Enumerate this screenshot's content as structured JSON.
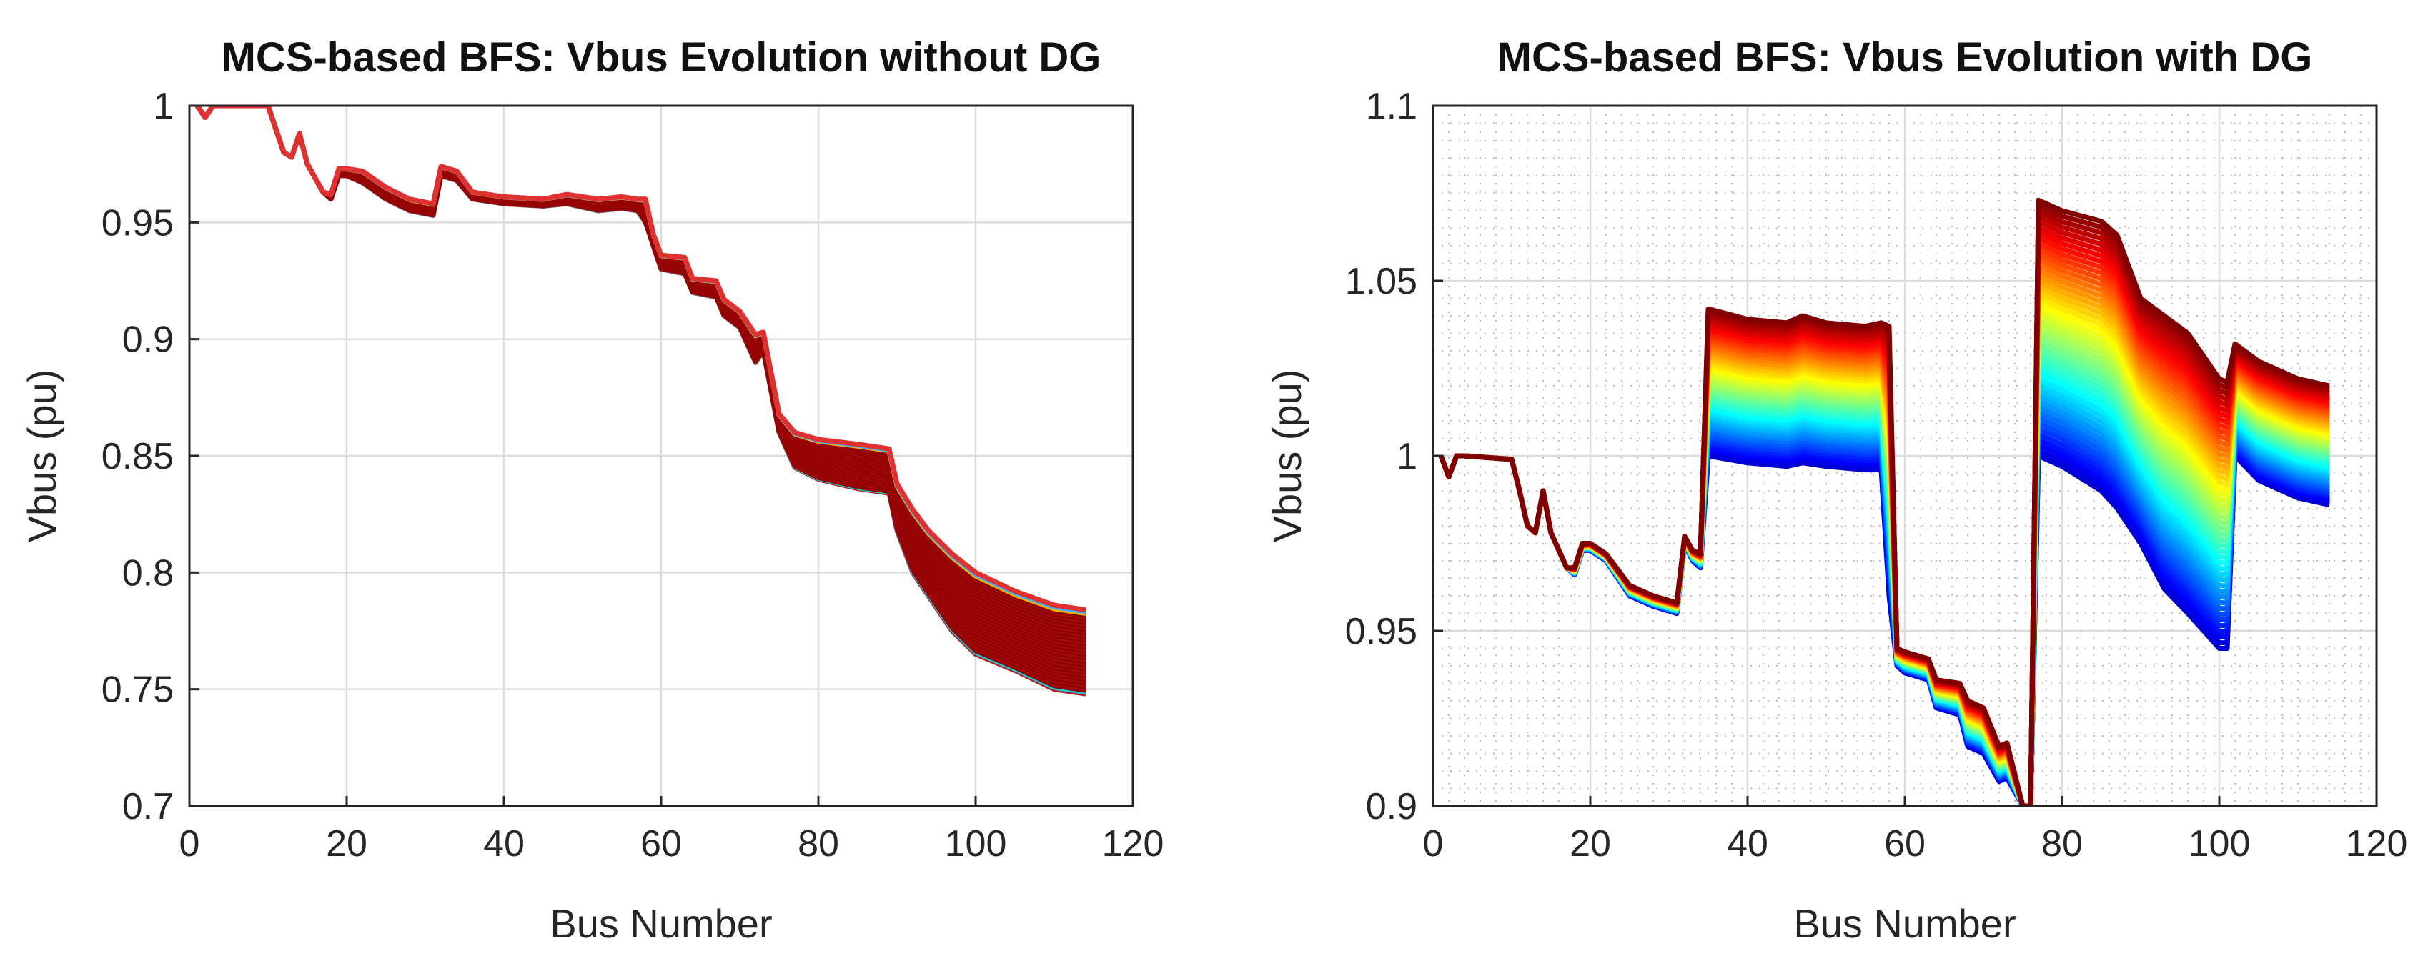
{
  "charts": [
    {
      "type": "line",
      "title": "MCS-based BFS: Vbus Evolution without DG",
      "xlabel": "Bus Number",
      "ylabel": "Vbus (pu)",
      "xlim": [
        0,
        120
      ],
      "ylim": [
        0.7,
        1.0
      ],
      "xticks": [
        "0",
        "20",
        "40",
        "60",
        "80",
        "100",
        "120"
      ],
      "yticks": [
        "0.7",
        "0.75",
        "0.8",
        "0.85",
        "0.9",
        "0.95",
        "1"
      ],
      "grid": "major",
      "band": {
        "x": [
          1,
          2,
          3,
          4,
          10,
          11,
          12,
          13,
          14,
          15,
          17,
          18,
          19,
          20,
          22,
          25,
          28,
          31,
          32,
          34,
          36,
          40,
          45,
          48,
          52,
          55,
          57,
          58,
          59,
          60,
          63,
          64,
          67,
          68,
          70,
          72,
          73,
          75,
          77,
          80,
          85,
          89,
          90,
          92,
          94,
          97,
          100,
          105,
          110,
          114
        ],
        "low": [
          1.0,
          0.995,
          1.0,
          1.0,
          1.0,
          0.99,
          0.98,
          0.978,
          0.988,
          0.975,
          0.963,
          0.96,
          0.97,
          0.97,
          0.967,
          0.96,
          0.955,
          0.953,
          0.97,
          0.968,
          0.96,
          0.958,
          0.957,
          0.958,
          0.955,
          0.956,
          0.955,
          0.95,
          0.94,
          0.93,
          0.928,
          0.92,
          0.918,
          0.91,
          0.905,
          0.89,
          0.895,
          0.86,
          0.845,
          0.84,
          0.836,
          0.834,
          0.818,
          0.8,
          0.79,
          0.775,
          0.765,
          0.758,
          0.75,
          0.748
        ],
        "high": [
          1.0,
          0.995,
          1.0,
          1.0,
          1.0,
          0.99,
          0.98,
          0.978,
          0.988,
          0.975,
          0.963,
          0.962,
          0.973,
          0.973,
          0.972,
          0.965,
          0.96,
          0.958,
          0.974,
          0.972,
          0.963,
          0.961,
          0.96,
          0.962,
          0.96,
          0.961,
          0.96,
          0.96,
          0.945,
          0.936,
          0.935,
          0.926,
          0.925,
          0.917,
          0.912,
          0.902,
          0.903,
          0.868,
          0.86,
          0.857,
          0.855,
          0.853,
          0.838,
          0.827,
          0.818,
          0.808,
          0.8,
          0.792,
          0.786,
          0.784
        ]
      }
    },
    {
      "type": "line",
      "title": "MCS-based BFS: Vbus Evolution with DG",
      "xlabel": "Bus Number",
      "ylabel": "Vbus (pu)",
      "xlim": [
        0,
        120
      ],
      "ylim": [
        0.9,
        1.1
      ],
      "xticks": [
        "0",
        "20",
        "40",
        "60",
        "80",
        "100",
        "120"
      ],
      "yticks": [
        "0.9",
        "0.95",
        "1",
        "1.05",
        "1.1"
      ],
      "grid": "major+minor",
      "band": {
        "x": [
          1,
          2,
          3,
          4,
          10,
          11,
          12,
          13,
          14,
          15,
          17,
          18,
          19,
          20,
          22,
          25,
          28,
          31,
          32,
          33,
          34,
          35,
          40,
          45,
          47,
          50,
          55,
          57,
          58,
          59,
          60,
          63,
          64,
          67,
          68,
          70,
          72,
          73,
          75,
          76,
          77,
          80,
          85,
          87,
          90,
          93,
          96,
          100,
          101,
          102,
          105,
          110,
          114
        ],
        "low": [
          1.0,
          0.994,
          1.0,
          1.0,
          0.999,
          0.99,
          0.98,
          0.978,
          0.99,
          0.978,
          0.968,
          0.966,
          0.973,
          0.973,
          0.97,
          0.96,
          0.957,
          0.955,
          0.975,
          0.97,
          0.968,
          1.0,
          0.998,
          0.997,
          0.998,
          0.997,
          0.996,
          0.996,
          0.96,
          0.94,
          0.938,
          0.936,
          0.928,
          0.926,
          0.917,
          0.915,
          0.907,
          0.908,
          0.9,
          0.9,
          1.0,
          0.997,
          0.99,
          0.985,
          0.975,
          0.962,
          0.955,
          0.945,
          0.945,
          1.0,
          0.993,
          0.988,
          0.986
        ],
        "high": [
          1.0,
          0.994,
          1.0,
          1.0,
          0.999,
          0.99,
          0.98,
          0.978,
          0.99,
          0.978,
          0.968,
          0.968,
          0.975,
          0.975,
          0.972,
          0.963,
          0.96,
          0.958,
          0.977,
          0.973,
          0.972,
          1.042,
          1.039,
          1.038,
          1.04,
          1.038,
          1.037,
          1.038,
          1.037,
          0.945,
          0.944,
          0.942,
          0.936,
          0.935,
          0.93,
          0.928,
          0.917,
          0.918,
          0.9,
          0.9,
          1.073,
          1.07,
          1.067,
          1.063,
          1.045,
          1.04,
          1.035,
          1.022,
          1.021,
          1.032,
          1.027,
          1.022,
          1.02
        ]
      }
    }
  ]
}
